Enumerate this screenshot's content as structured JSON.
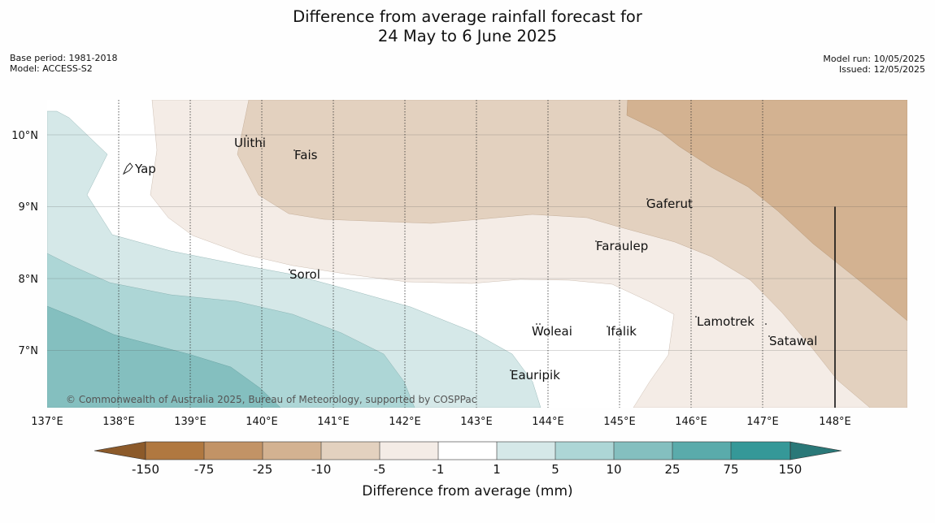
{
  "title": {
    "line1": "Difference from average rainfall forecast for",
    "line2": "24 May to 6 June 2025"
  },
  "meta_left": {
    "base_period": "Base period: 1981-2018",
    "model": "Model: ACCESS-S2"
  },
  "meta_right": {
    "model_run": "Model run: 10/05/2025",
    "issued": "Issued: 12/05/2025"
  },
  "map": {
    "lat_labels": [
      "10°N",
      "9°N",
      "8°N",
      "7°N"
    ],
    "lon_labels": [
      "137°E",
      "138°E",
      "139°E",
      "140°E",
      "141°E",
      "142°E",
      "143°E",
      "144°E",
      "145°E",
      "146°E",
      "147°E",
      "148°E"
    ],
    "places": {
      "yap": "Yap",
      "ulithi": "Ulithi",
      "fais": "Fais",
      "gaferut": "Gaferut",
      "faraulep": "Faraulep",
      "sorol": "Sorol",
      "woleai": "Woleai",
      "ifalik": "Ifalik",
      "lamotrek": "Lamotrek",
      "satawal": "Satawal",
      "eauripik": "Eauripik"
    },
    "copyright": "© Commonwealth of Australia 2025, Bureau of Meteorology, supported by COSPPac"
  },
  "colorbar": {
    "ticks": [
      "-150",
      "-75",
      "-25",
      "-10",
      "-5",
      "-1",
      "1",
      "5",
      "10",
      "25",
      "75",
      "150"
    ],
    "colors": [
      "#8c5a2a",
      "#b07840",
      "#c29366",
      "#d3b291",
      "#e3d1bf",
      "#f4ece6",
      "#ffffff",
      "#d5e8e8",
      "#add6d6",
      "#84bfbf",
      "#5aabab",
      "#359898",
      "#2a7878"
    ],
    "label": "Difference from average (mm)"
  }
}
